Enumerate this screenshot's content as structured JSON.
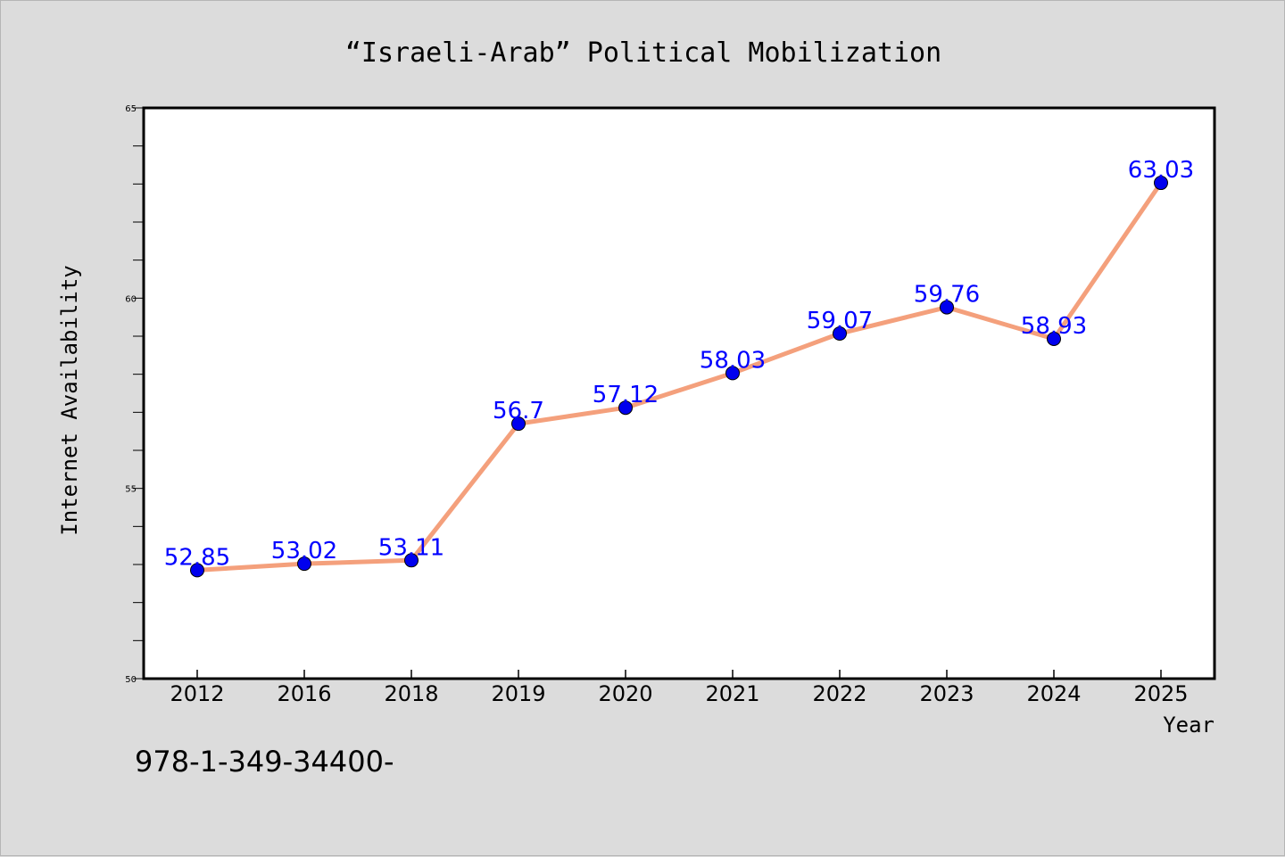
{
  "chart_data": {
    "type": "line",
    "title": "“Israeli-Arab” Political Mobilization",
    "xlabel": "Year",
    "ylabel": "Internet Availability",
    "categories": [
      "2012",
      "2016",
      "2018",
      "2019",
      "2020",
      "2021",
      "2022",
      "2023",
      "2024",
      "2025"
    ],
    "series": [
      {
        "values": [
          52.85,
          53.02,
          53.11,
          56.7,
          57.12,
          58.03,
          59.07,
          59.76,
          58.93,
          63.03
        ]
      }
    ],
    "data_labels": [
      "52.85",
      "53.02",
      "53.11",
      "56.7",
      "57.12",
      "58.03",
      "59.07",
      "59.76",
      "58.93",
      "63.03"
    ],
    "ylim": [
      50,
      65
    ],
    "y_ticks": [
      50,
      55,
      60,
      65
    ],
    "y_minor_step": 1,
    "grid": false,
    "legend": "none",
    "colors": {
      "line": "#f4a07c",
      "marker": "#0000ee",
      "label": "#0000ff",
      "background": "#dcdcdc",
      "plot_bg": "#ffffff"
    }
  },
  "footer_text": "978-1-349-34400-"
}
